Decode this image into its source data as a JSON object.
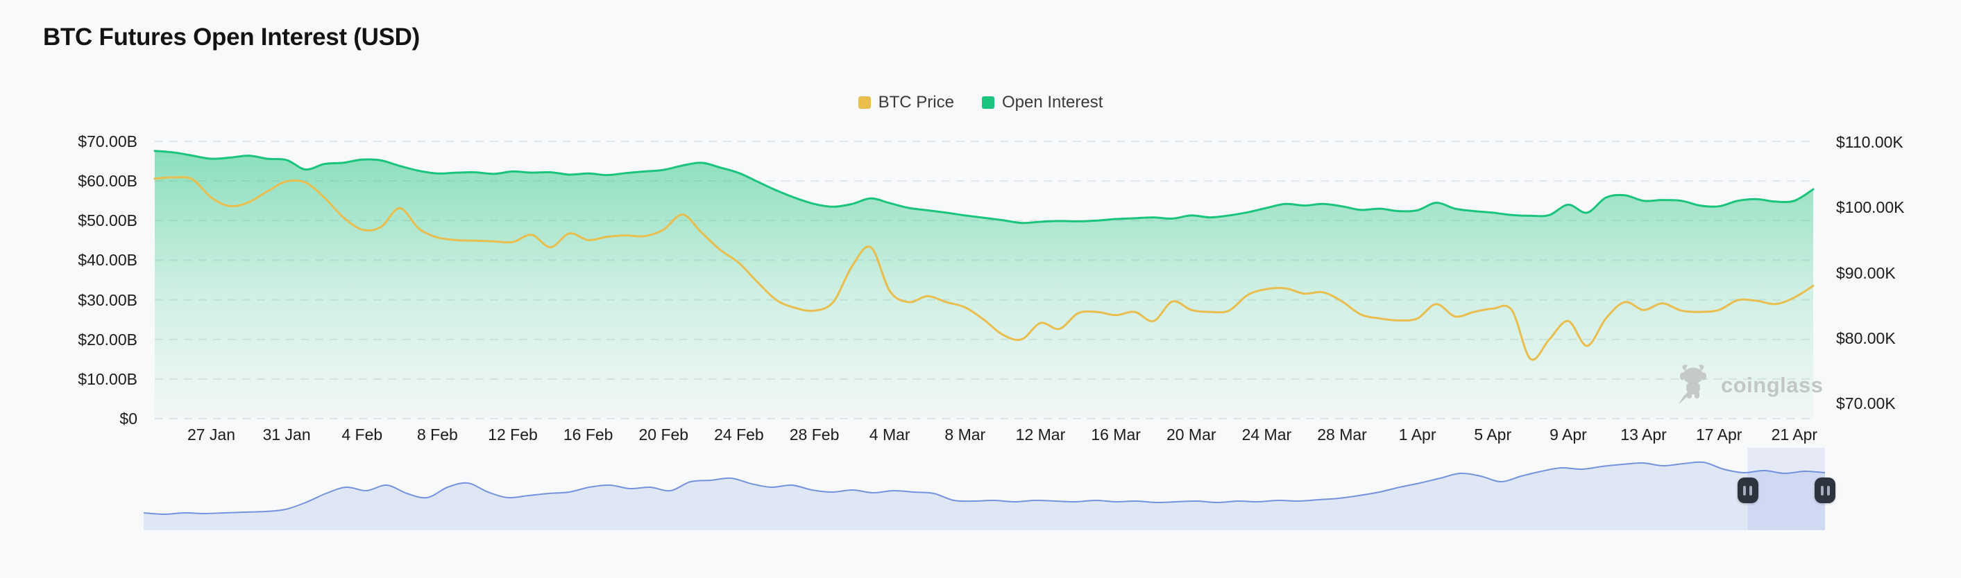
{
  "page": {
    "title": "BTC Futures Open Interest (USD)"
  },
  "legend": [
    {
      "label": "BTC Price",
      "color": "#E9BE4F"
    },
    {
      "label": "Open Interest",
      "color": "#1BC47D"
    }
  ],
  "axes": {
    "left_labels": [
      "$70.00B",
      "$60.00B",
      "$50.00B",
      "$40.00B",
      "$30.00B",
      "$20.00B",
      "$10.00B",
      "$0"
    ],
    "right_labels": [
      "$110.00K",
      "$100.00K",
      "$90.00K",
      "$80.00K",
      "$70.00K"
    ],
    "x_labels": [
      "27 Jan",
      "31 Jan",
      "4 Feb",
      "8 Feb",
      "12 Feb",
      "16 Feb",
      "20 Feb",
      "24 Feb",
      "28 Feb",
      "4 Mar",
      "8 Mar",
      "12 Mar",
      "16 Mar",
      "20 Mar",
      "24 Mar",
      "28 Mar",
      "1 Apr",
      "5 Apr",
      "9 Apr",
      "13 Apr",
      "17 Apr",
      "21 Apr"
    ]
  },
  "watermark": {
    "text": "coinglass",
    "icon": "coinglass-bull-icon"
  },
  "chart_data": {
    "type": "area",
    "title": "BTC Futures Open Interest (USD)",
    "x_tick_labels": [
      "27 Jan",
      "31 Jan",
      "4 Feb",
      "8 Feb",
      "12 Feb",
      "16 Feb",
      "20 Feb",
      "24 Feb",
      "28 Feb",
      "4 Mar",
      "8 Mar",
      "12 Mar",
      "16 Mar",
      "20 Mar",
      "24 Mar",
      "28 Mar",
      "1 Apr",
      "5 Apr",
      "9 Apr",
      "13 Apr",
      "17 Apr",
      "21 Apr"
    ],
    "left_axis": {
      "labels": [
        "$70.00B",
        "$60.00B",
        "$50.00B",
        "$40.00B",
        "$30.00B",
        "$20.00B",
        "$10.00B",
        "$0"
      ],
      "min": 0,
      "max": 70,
      "unit": "USD billions"
    },
    "right_axis": {
      "labels": [
        "$110.00K",
        "$100.00K",
        "$90.00K",
        "$80.00K",
        "$70.00K"
      ],
      "top": 110,
      "bottom": 70,
      "unit": "USD thousands"
    },
    "grid": "horizontal-dashed",
    "legend_position": "top-center",
    "series": [
      {
        "name": "Open Interest",
        "axis": "left",
        "unit": "USD billions",
        "color": "#1BC47D",
        "area": true,
        "values": [
          67.6,
          67.2,
          66.4,
          65.6,
          65.9,
          66.4,
          65.6,
          65.3,
          62.9,
          64.3,
          64.6,
          65.4,
          65.2,
          63.8,
          62.6,
          61.9,
          62.1,
          62.2,
          61.8,
          62.4,
          62.1,
          62.2,
          61.6,
          61.9,
          61.5,
          62.0,
          62.4,
          62.8,
          63.9,
          64.6,
          63.4,
          62.0,
          59.8,
          57.6,
          55.7,
          54.2,
          53.5,
          54.2,
          55.6,
          54.4,
          53.2,
          52.6,
          52.0,
          51.3,
          50.7,
          50.1,
          49.4,
          49.7,
          49.9,
          49.8,
          50.0,
          50.4,
          50.6,
          50.8,
          50.5,
          51.3,
          50.8,
          51.3,
          52.1,
          53.2,
          54.2,
          53.8,
          54.2,
          53.6,
          52.7,
          53.0,
          52.4,
          52.6,
          54.5,
          53.0,
          52.4,
          52.0,
          51.4,
          51.2,
          51.4,
          54.0,
          52.0,
          55.8,
          56.4,
          55.0,
          55.2,
          55.0,
          53.8,
          53.6,
          55.0,
          55.4,
          54.8,
          55.0,
          57.9
        ]
      },
      {
        "name": "BTC Price",
        "axis": "right",
        "unit": "USD thousands",
        "color": "#E9BE4F",
        "area": false,
        "values": [
          104.4,
          104.6,
          104.3,
          101.5,
          100.2,
          100.8,
          102.5,
          104.0,
          103.8,
          101.5,
          98.5,
          96.6,
          97.0,
          99.9,
          96.8,
          95.4,
          95.0,
          94.9,
          94.8,
          94.7,
          95.8,
          93.9,
          96.0,
          95.0,
          95.5,
          95.7,
          95.6,
          96.6,
          98.9,
          96.2,
          93.5,
          91.5,
          88.5,
          85.8,
          84.6,
          84.2,
          85.5,
          91.0,
          93.9,
          87.2,
          85.5,
          86.4,
          85.5,
          84.7,
          82.8,
          80.5,
          79.8,
          82.3,
          81.4,
          83.8,
          84.0,
          83.5,
          84.0,
          82.6,
          85.6,
          84.3,
          84.0,
          84.2,
          86.6,
          87.5,
          87.6,
          86.8,
          87.0,
          85.6,
          83.6,
          83.0,
          82.7,
          83.0,
          85.2,
          83.3,
          84.0,
          84.5,
          84.3,
          76.8,
          79.8,
          82.6,
          78.8,
          83.0,
          85.5,
          84.3,
          85.3,
          84.2,
          84.0,
          84.3,
          85.8,
          85.7,
          85.2,
          86.2,
          88.0
        ]
      }
    ]
  },
  "navigator": {
    "values": [
      25,
      23,
      25,
      24,
      25,
      26,
      27,
      30,
      40,
      53,
      62,
      57,
      65,
      53,
      47,
      62,
      68,
      55,
      47,
      50,
      53,
      55,
      62,
      65,
      60,
      62,
      57,
      70,
      72,
      75,
      67,
      62,
      65,
      58,
      55,
      58,
      54,
      57,
      55,
      53,
      43,
      42,
      43,
      41,
      43,
      42,
      41,
      43,
      41,
      42,
      40,
      41,
      42,
      40,
      42,
      41,
      43,
      42,
      44,
      46,
      50,
      55,
      62,
      68,
      75,
      82,
      78,
      70,
      78,
      85,
      90,
      88,
      92,
      95,
      97,
      93,
      96,
      98,
      88,
      83,
      86,
      82,
      85,
      83
    ],
    "selection": {
      "from": 0.954,
      "to": 1.0
    },
    "line_color": "#5F82D9"
  }
}
